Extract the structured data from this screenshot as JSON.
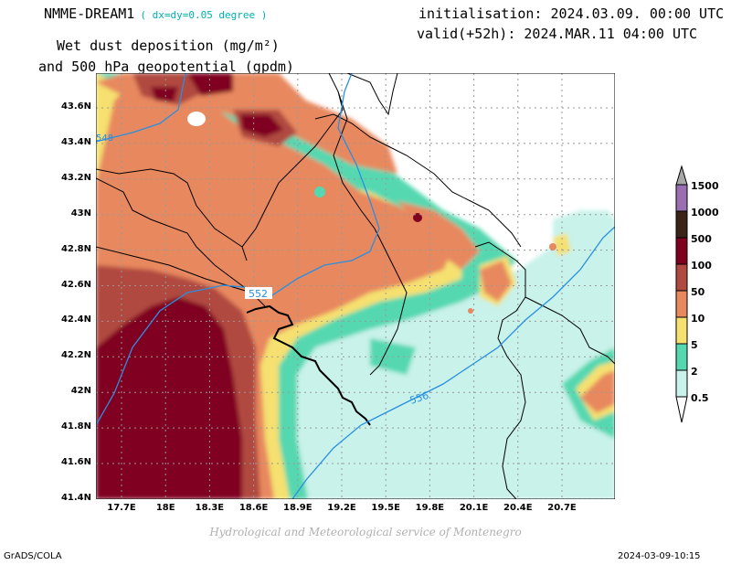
{
  "header": {
    "model": "NMME-DREAM1",
    "resolution": "( dx=dy=0.05 degree )",
    "variable_line1": "Wet dust deposition (mg/m²)",
    "variable_line2": "and 500 hPa geopotential (gpdm)",
    "initialisation": "initialisation: 2024.03.09. 00:00 UTC",
    "valid": "valid(+52h): 2024.MAR.11 04:00 UTC"
  },
  "map": {
    "lat_labels": [
      "43.6N",
      "43.4N",
      "43.2N",
      "43N",
      "42.8N",
      "42.6N",
      "42.4N",
      "42.2N",
      "42N",
      "41.8N",
      "41.6N",
      "41.4N"
    ],
    "lon_labels": [
      "17.7E",
      "18E",
      "18.3E",
      "18.6E",
      "18.9E",
      "19.2E",
      "19.5E",
      "19.8E",
      "20.1E",
      "20.4E",
      "20.7E"
    ],
    "contour_labels": [
      "548",
      "552",
      "556"
    ],
    "contour_color": "#2a8fe0"
  },
  "legend": {
    "levels": [
      "1500",
      "1000",
      "500",
      "100",
      "50",
      "10",
      "5",
      "2",
      "0.5"
    ],
    "colors": [
      "#a8a8a8",
      "#9a6fb2",
      "#3a2418",
      "#800020",
      "#b04a40",
      "#e8885e",
      "#f5e070",
      "#55d8b0",
      "#c8f2ea",
      "#ffffff"
    ]
  },
  "footer": {
    "credit": "Hydrological and Meteorological service of Montenegro",
    "software": "GrADS/COLA",
    "timestamp": "2024-03-09-10:15"
  }
}
